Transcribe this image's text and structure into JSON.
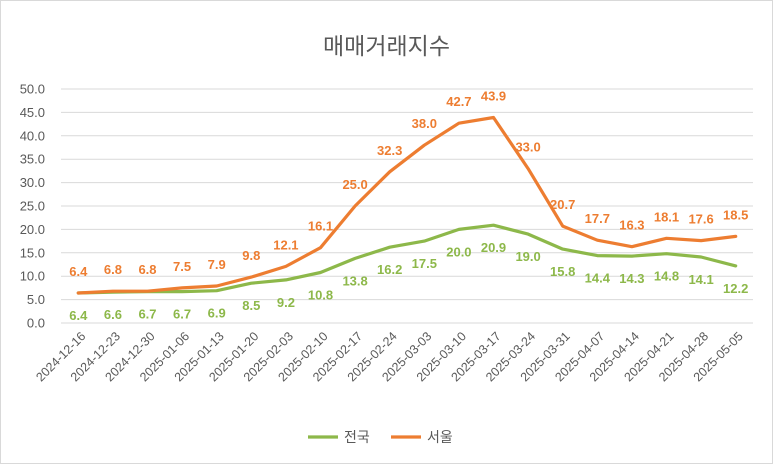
{
  "chart_data": {
    "type": "line",
    "title": "매매거래지수",
    "categories": [
      "2024-12-16",
      "2024-12-23",
      "2024-12-30",
      "2025-01-06",
      "2025-01-13",
      "2025-01-20",
      "2025-02-03",
      "2025-02-10",
      "2025-02-17",
      "2025-02-24",
      "2025-03-03",
      "2025-03-10",
      "2025-03-17",
      "2025-03-24",
      "2025-03-31",
      "2025-04-07",
      "2025-04-14",
      "2025-04-21",
      "2025-04-28",
      "2025-05-05"
    ],
    "series": [
      {
        "name": "전국",
        "color": "#8DB84A",
        "values": [
          6.4,
          6.6,
          6.7,
          6.7,
          6.9,
          8.5,
          9.2,
          10.8,
          13.8,
          16.2,
          17.5,
          20.0,
          20.9,
          19.0,
          15.8,
          14.4,
          14.3,
          14.8,
          14.1,
          12.2
        ],
        "labels": [
          "6.4",
          "6.6",
          "6.7",
          "6.7",
          "6.9",
          "8.5",
          "9.2",
          "10.8",
          "13.8",
          "16.2",
          "17.5",
          "20.0",
          "20.9",
          "19.0",
          "15.8",
          "14.4",
          "14.3",
          "14.8",
          "14.1",
          "12.2"
        ]
      },
      {
        "name": "서울",
        "color": "#ED7D31",
        "values": [
          6.4,
          6.8,
          6.8,
          7.5,
          7.9,
          9.8,
          12.1,
          16.1,
          25.0,
          32.3,
          38.0,
          42.7,
          43.9,
          33.0,
          20.7,
          17.7,
          16.3,
          18.1,
          17.6,
          18.5
        ],
        "labels": [
          "6.4",
          "6.8",
          "6.8",
          "7.5",
          "7.9",
          "9.8",
          "12.1",
          "16.1",
          "25.0",
          "32.3",
          "38.0",
          "42.7",
          "43.9",
          "33.0",
          "20.7",
          "17.7",
          "16.3",
          "18.1",
          "17.6",
          "18.5"
        ]
      }
    ],
    "ylim": [
      0,
      50
    ],
    "yticks": [
      "0.0",
      "5.0",
      "10.0",
      "15.0",
      "20.0",
      "25.0",
      "30.0",
      "35.0",
      "40.0",
      "45.0",
      "50.0"
    ],
    "grid": true,
    "legend": "bottom"
  }
}
